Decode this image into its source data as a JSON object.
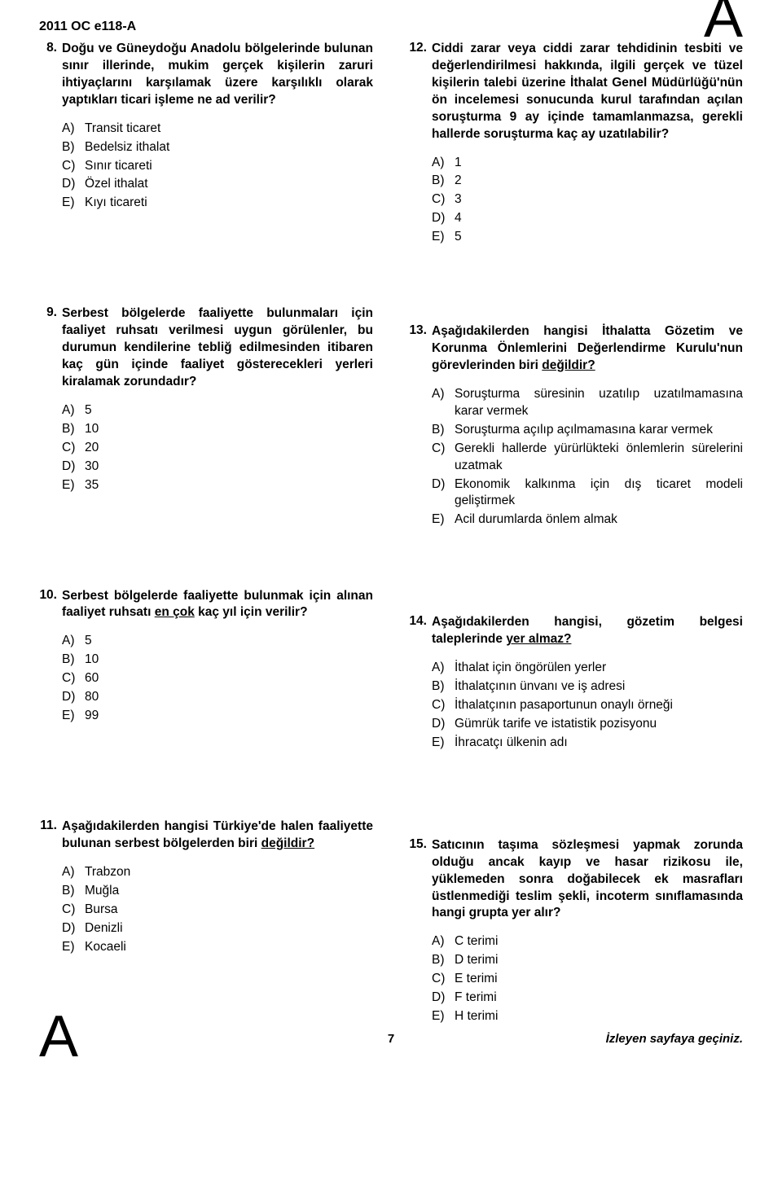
{
  "examCode": "2011 OC e118-A",
  "cornerLetter": "A",
  "pageNumber": "7",
  "nextPageText": "İzleyen sayfaya geçiniz.",
  "leftQuestions": [
    {
      "num": "8.",
      "text": "Doğu ve Güneydoğu Anadolu bölgelerinde bulunan sınır illerinde, mukim gerçek kişilerin zaruri ihtiyaçlarını karşılamak üzere karşılıklı olarak yaptıkları ticari işleme ne ad verilir?",
      "options": [
        {
          "l": "A)",
          "t": "Transit ticaret"
        },
        {
          "l": "B)",
          "t": "Bedelsiz ithalat"
        },
        {
          "l": "C)",
          "t": "Sınır ticareti"
        },
        {
          "l": "D)",
          "t": "Özel ithalat"
        },
        {
          "l": "E)",
          "t": "Kıyı ticareti"
        }
      ]
    },
    {
      "num": "9.",
      "text": "Serbest bölgelerde faaliyette bulunmaları için faaliyet ruhsatı verilmesi uygun görülenler, bu durumun kendilerine tebliğ edilmesinden itibaren kaç gün içinde faaliyet gösterecekleri yerleri kiralamak zorundadır?",
      "options": [
        {
          "l": "A)",
          "t": "5"
        },
        {
          "l": "B)",
          "t": "10"
        },
        {
          "l": "C)",
          "t": "20"
        },
        {
          "l": "D)",
          "t": "30"
        },
        {
          "l": "E)",
          "t": "35"
        }
      ]
    },
    {
      "num": "10.",
      "text": "Serbest bölgelerde faaliyette bulunmak için alınan faaliyet ruhsatı <span class=\"underline\">en çok</span> kaç yıl için verilir?",
      "options": [
        {
          "l": "A)",
          "t": "5"
        },
        {
          "l": "B)",
          "t": "10"
        },
        {
          "l": "C)",
          "t": "60"
        },
        {
          "l": "D)",
          "t": "80"
        },
        {
          "l": "E)",
          "t": "99"
        }
      ]
    },
    {
      "num": "11.",
      "text": "Aşağıdakilerden hangisi Türkiye'de halen faaliyette bulunan serbest bölgelerden biri <span class=\"underline\">değildir?</span>",
      "options": [
        {
          "l": "A)",
          "t": "Trabzon"
        },
        {
          "l": "B)",
          "t": "Muğla"
        },
        {
          "l": "C)",
          "t": "Bursa"
        },
        {
          "l": "D)",
          "t": "Denizli"
        },
        {
          "l": "E)",
          "t": "Kocaeli"
        }
      ]
    }
  ],
  "rightQuestions": [
    {
      "num": "12.",
      "text": "Ciddi zarar veya ciddi zarar tehdidinin tesbiti ve değerlendirilmesi hakkında, ilgili gerçek ve tüzel kişilerin talebi üzerine İthalat Genel Müdürlüğü'nün ön incelemesi sonucunda kurul tarafından açılan soruşturma 9 ay içinde tamamlanmazsa, gerekli hallerde soruşturma kaç ay uzatılabilir?",
      "options": [
        {
          "l": "A)",
          "t": "1"
        },
        {
          "l": "B)",
          "t": "2"
        },
        {
          "l": "C)",
          "t": "3"
        },
        {
          "l": "D)",
          "t": "4"
        },
        {
          "l": "E)",
          "t": "5"
        }
      ]
    },
    {
      "num": "13.",
      "text": "Aşağıdakilerden hangisi İthalatta Gözetim ve Korunma Önlemlerini Değerlendirme Kurulu'nun görevlerinden biri <span class=\"underline\">değildir?</span>",
      "options": [
        {
          "l": "A)",
          "t": "Soruşturma süresinin uzatılıp uzatılmamasına karar vermek"
        },
        {
          "l": "B)",
          "t": "Soruşturma açılıp açılmamasına karar vermek"
        },
        {
          "l": "C)",
          "t": "Gerekli hallerde yürürlükteki önlemlerin sürelerini uzatmak"
        },
        {
          "l": "D)",
          "t": "Ekonomik kalkınma için dış ticaret modeli geliştirmek"
        },
        {
          "l": "E)",
          "t": "Acil durumlarda önlem almak"
        }
      ]
    },
    {
      "num": "14.",
      "text": "Aşağıdakilerden hangisi, gözetim belgesi taleplerinde <span class=\"underline\">yer almaz?</span>",
      "options": [
        {
          "l": "A)",
          "t": "İthalat için öngörülen yerler"
        },
        {
          "l": "B)",
          "t": "İthalatçının ünvanı ve iş adresi"
        },
        {
          "l": "C)",
          "t": "İthalatçının pasaportunun onaylı örneği"
        },
        {
          "l": "D)",
          "t": "Gümrük tarife ve istatistik pozisyonu"
        },
        {
          "l": "E)",
          "t": "İhracatçı ülkenin adı"
        }
      ]
    },
    {
      "num": "15.",
      "text": "Satıcının taşıma sözleşmesi yapmak zorunda olduğu ancak kayıp ve hasar rizikosu ile, yüklemeden sonra doğabilecek ek masrafları üstlenmediği teslim şekli, incoterm sınıflamasında hangi grupta yer alır?",
      "options": [
        {
          "l": "A)",
          "t": "C terimi"
        },
        {
          "l": "B)",
          "t": "D terimi"
        },
        {
          "l": "C)",
          "t": "E terimi"
        },
        {
          "l": "D)",
          "t": "F terimi"
        },
        {
          "l": "E)",
          "t": "H terimi"
        }
      ]
    }
  ]
}
